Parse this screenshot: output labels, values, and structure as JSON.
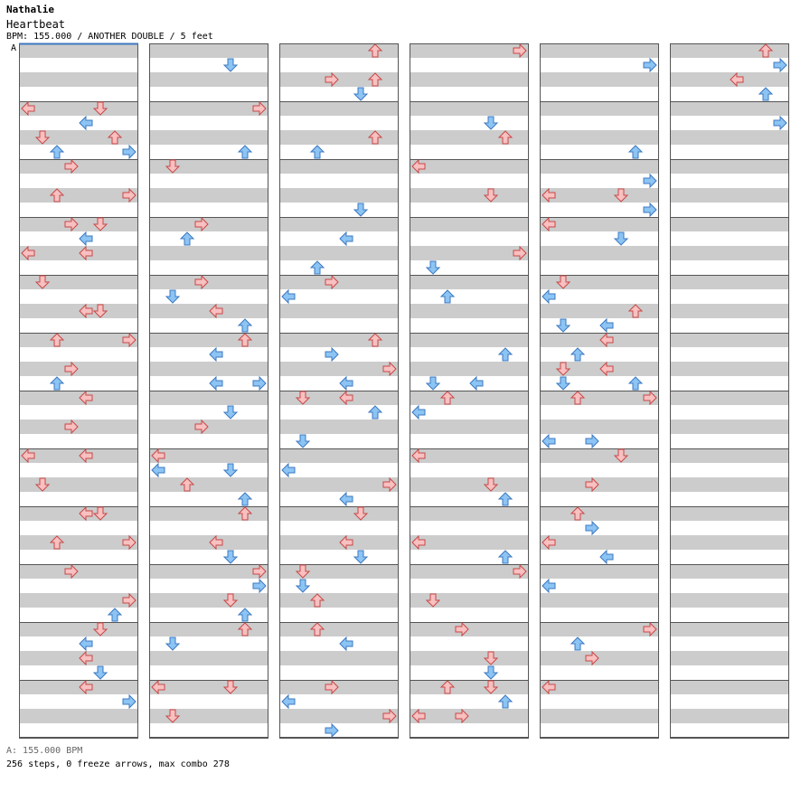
{
  "header": {
    "artist": "Nathalie",
    "title": "Heartbeat",
    "meta": "BPM: 155.000 / ANOTHER DOUBLE / 5 feet"
  },
  "bpm_marker": "A",
  "footer": {
    "bpm_line": "A: 155.000 BPM",
    "stats": "256 steps, 0 freeze arrows, max combo 278"
  },
  "colors": {
    "stripe_gray": "#cccccc",
    "stripe_white": "#ffffff",
    "measure_line": "#555555",
    "arrow_red_fill": "#f8c0c0",
    "arrow_red_stroke": "#c84848",
    "arrow_blue_fill": "#8cc4f4",
    "arrow_blue_stroke": "#3c78c0"
  },
  "note_colors": {
    "4th": "red",
    "8th": "blue"
  },
  "chart_data": {
    "type": "step-chart",
    "lanes": [
      "1P-left",
      "1P-down",
      "1P-up",
      "1P-right",
      "2P-left",
      "2P-down",
      "2P-up",
      "2P-right"
    ],
    "subdivision": "16th",
    "rows_per_column": 48,
    "notes": [
      [
        0,
        0,
        0,
        [
          5,
          4
        ]
      ],
      [
        0,
        0,
        0,
        [
          0,
          4
        ]
      ],
      [
        0,
        0,
        0,
        [
          4,
          5
        ]
      ],
      [
        0,
        0,
        0,
        [
          1,
          6
        ]
      ],
      [
        0,
        0,
        0,
        [
          6,
          6
        ]
      ],
      [
        0,
        0,
        0,
        [
          2,
          7
        ]
      ],
      [
        0,
        0,
        0,
        [
          7,
          7
        ]
      ],
      [
        0,
        0,
        0,
        [
          3,
          8
        ]
      ],
      [
        0,
        0,
        0,
        [
          2,
          10
        ]
      ],
      [
        0,
        0,
        0,
        [
          7,
          10
        ]
      ],
      [
        0,
        0,
        0,
        [
          3,
          12
        ]
      ],
      [
        0,
        0,
        0,
        [
          5,
          12
        ]
      ],
      [
        0,
        0,
        0,
        [
          4,
          13
        ]
      ],
      [
        0,
        0,
        0,
        [
          0,
          14
        ]
      ],
      [
        0,
        0,
        0,
        [
          4,
          14
        ]
      ],
      [
        0,
        0,
        0,
        [
          1,
          16
        ]
      ],
      [
        0,
        0,
        0,
        [
          4,
          18
        ]
      ],
      [
        0,
        0,
        0,
        [
          5,
          18
        ]
      ],
      [
        0,
        0,
        0,
        [
          2,
          20
        ]
      ],
      [
        0,
        0,
        0,
        [
          7,
          20
        ]
      ],
      [
        0,
        0,
        0,
        [
          3,
          22
        ]
      ],
      [
        0,
        0,
        0,
        [
          2,
          23
        ]
      ],
      [
        0,
        0,
        0,
        [
          4,
          24
        ]
      ],
      [
        0,
        0,
        0,
        [
          3,
          26
        ]
      ],
      [
        0,
        0,
        0,
        [
          0,
          28
        ]
      ],
      [
        0,
        0,
        0,
        [
          4,
          28
        ]
      ],
      [
        0,
        0,
        0,
        [
          1,
          30
        ]
      ],
      [
        0,
        0,
        0,
        [
          4,
          32
        ]
      ],
      [
        0,
        0,
        0,
        [
          5,
          32
        ]
      ],
      [
        0,
        0,
        0,
        [
          2,
          34
        ]
      ],
      [
        0,
        0,
        0,
        [
          7,
          34
        ]
      ],
      [
        0,
        0,
        0,
        [
          3,
          36
        ]
      ],
      [
        0,
        0,
        0,
        [
          7,
          38
        ]
      ],
      [
        0,
        0,
        0,
        [
          8,
          38
        ]
      ],
      [
        0,
        0,
        0,
        [
          6,
          39
        ]
      ],
      [
        0,
        0,
        0,
        [
          5,
          40
        ]
      ],
      [
        0,
        0,
        0,
        [
          4,
          41
        ]
      ],
      [
        0,
        0,
        0,
        [
          4,
          42
        ]
      ],
      [
        0,
        0,
        0,
        [
          5,
          43
        ]
      ],
      [
        0,
        0,
        0,
        [
          4,
          44
        ]
      ],
      [
        0,
        0,
        0,
        [
          7,
          45
        ]
      ],
      [
        0,
        0,
        0,
        [
          8,
          47
        ]
      ]
    ]
  }
}
